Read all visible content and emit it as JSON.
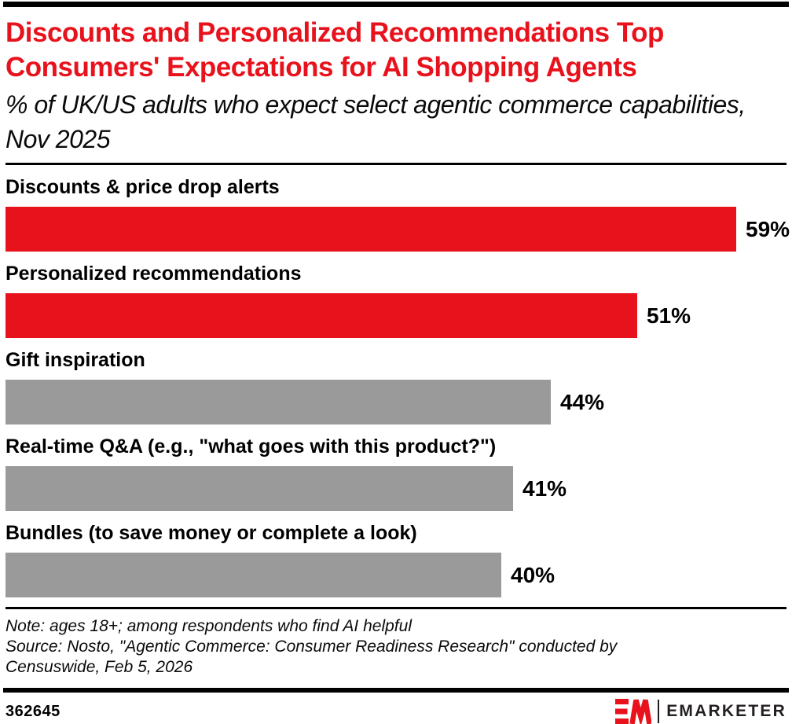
{
  "colors": {
    "accent_red": "#E8121C",
    "bar_gray": "#9A9A9A",
    "rule_black": "#000000",
    "brand_text": "#231F20"
  },
  "header": {
    "title": "Discounts and Personalized Recommendations Top Consumers' Expectations for AI Shopping Agents",
    "subtitle": "% of UK/US adults who expect select agentic commerce capabilities, Nov 2025"
  },
  "chart_data": {
    "type": "bar",
    "orientation": "horizontal",
    "title": "Discounts and Personalized Recommendations Top Consumers' Expectations for AI Shopping Agents",
    "subtitle": "% of UK/US adults who expect select agentic commerce capabilities, Nov 2025",
    "categories": [
      "Discounts & price drop alerts",
      "Personalized recommendations",
      "Gift inspiration",
      "Real-time Q&A (e.g., \"what goes with this product?\")",
      "Bundles (to save money or complete a look)"
    ],
    "values": [
      59,
      51,
      44,
      41,
      40
    ],
    "value_labels": [
      "59%",
      "51%",
      "44%",
      "41%",
      "40%"
    ],
    "bar_colors": [
      "#E8121C",
      "#E8121C",
      "#9A9A9A",
      "#9A9A9A",
      "#9A9A9A"
    ],
    "unit": "%",
    "xlim": [
      0,
      63
    ],
    "grid": false,
    "legend": "none",
    "value_label_position": "outside-end"
  },
  "footer": {
    "note": "Note: ages 18+; among respondents who find AI helpful",
    "source": "Source: Nosto, \"Agentic Commerce: Consumer Readiness Research\" conducted by Censuswide, Feb 5, 2026",
    "chart_id": "362645",
    "brand_name": "EMARKETER"
  }
}
